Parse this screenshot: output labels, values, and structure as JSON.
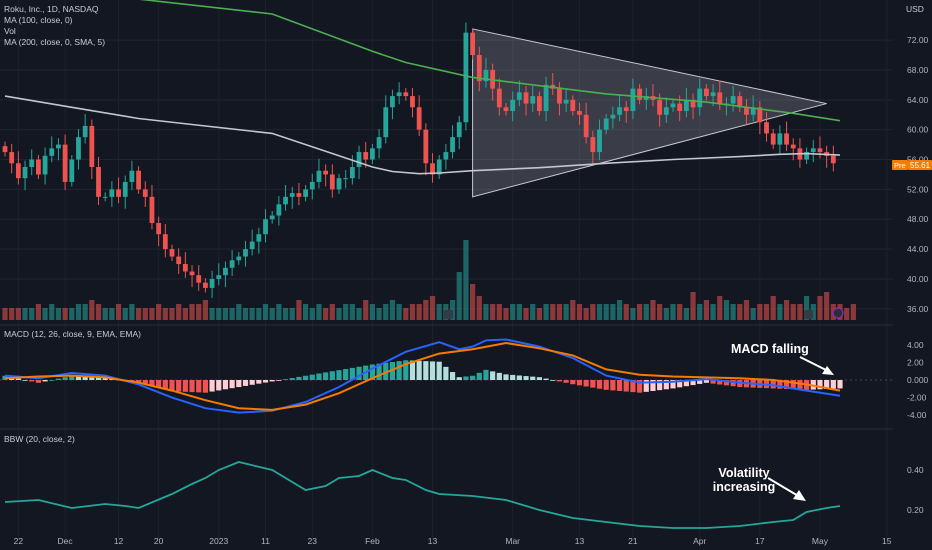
{
  "header": {
    "symbol": "Roku, Inc., 1D, NASDAQ",
    "ma100": "MA (100, close, 0)",
    "vol": "Vol",
    "ma200": "MA (200, close, 0, SMA, 5)",
    "currency": "USD"
  },
  "macd_legend": "MACD (12, 26, close, 9, EMA, EMA)",
  "bbw_legend": "BBW (20, close, 2)",
  "annotations": {
    "macd": "MACD falling",
    "vol_line1": "Volatility",
    "vol_line2": "increasing"
  },
  "price_tag": {
    "pre_label": "Pre",
    "value": "55.61"
  },
  "colors": {
    "up": "#26a69a",
    "down": "#ef5350",
    "ma100": "#4caf50",
    "ma200": "#c3c6ce",
    "macd": "#2962ff",
    "signal": "#f57c00",
    "bbw": "#26a69a"
  },
  "chart_data": [
    {
      "type": "candlestick",
      "panel": "price",
      "x_ticks": [
        "22",
        "Dec",
        "12",
        "20",
        "2023",
        "11",
        "23",
        "Feb",
        "13",
        "Mar",
        "13",
        "21",
        "Apr",
        "17",
        "May",
        "15"
      ],
      "y_ticks": [
        "72.00",
        "68.00",
        "64.00",
        "60.00",
        "56.00",
        "52.00",
        "48.00",
        "44.00",
        "40.00",
        "36.00"
      ],
      "ylim": [
        34.5,
        75.5
      ],
      "closes": [
        57,
        55.5,
        53.5,
        55,
        56,
        54,
        56.5,
        57.5,
        58,
        53,
        56,
        59,
        60.5,
        55,
        51,
        51,
        52,
        51,
        53,
        54.5,
        52,
        51,
        47.5,
        46,
        44,
        43,
        42,
        41,
        40.5,
        39.5,
        38.8,
        40,
        40.5,
        41.5,
        42.5,
        43,
        44,
        45,
        46,
        48,
        48.5,
        50,
        51,
        51.5,
        51,
        52,
        53,
        54.5,
        54,
        52,
        53.5,
        53.5,
        55,
        57,
        56,
        57.5,
        59,
        63,
        64.5,
        65,
        64.5,
        63,
        60,
        55.5,
        54,
        56,
        57,
        59,
        61,
        73,
        70,
        66.5,
        68,
        65.5,
        63,
        62.5,
        64,
        65,
        63.5,
        64.5,
        62.5,
        66,
        65.5,
        63.5,
        64,
        62.5,
        62,
        59,
        57,
        60,
        61.5,
        62,
        63,
        62.5,
        65.5,
        64,
        64.5,
        64,
        62,
        63,
        63.5,
        62.5,
        64,
        63,
        65.5,
        64.5,
        65,
        63.5,
        63.5,
        64.5,
        63,
        62,
        63,
        61,
        59.5,
        58,
        59.5,
        58,
        57.5,
        56,
        57,
        57.5,
        57,
        56.5,
        55.5
      ],
      "triangle": {
        "x_idx": [
          70,
          123,
          70
        ],
        "y": [
          73.5,
          63.5,
          51
        ]
      },
      "annotation": "symmetrical triangle"
    },
    {
      "type": "line",
      "panel": "price",
      "series": [
        {
          "name": "MA (100, close, 0)",
          "role": "ma100",
          "x_idx": [
            0,
            20,
            40,
            55,
            60,
            70,
            90,
            105,
            118,
            125
          ],
          "values": [
            78,
            77.5,
            75.5,
            70.5,
            69,
            67,
            64.8,
            63.7,
            62.2,
            61.2
          ]
        },
        {
          "name": "MA (200, close, 0, SMA, 5)",
          "role": "ma200",
          "x_idx": [
            0,
            10,
            20,
            30,
            40,
            50,
            55,
            58,
            62,
            65,
            70,
            80,
            90,
            100,
            110,
            116,
            120,
            125
          ],
          "values": [
            64.5,
            63,
            61.5,
            60.5,
            59.5,
            56.5,
            55,
            54.4,
            54.1,
            54.2,
            54.5,
            54.9,
            55.5,
            56,
            56.4,
            56.7,
            56.8,
            56.6
          ]
        }
      ]
    },
    {
      "type": "bar",
      "panel": "volume",
      "values": [
        3,
        3,
        3,
        3,
        3,
        4,
        3,
        4,
        3,
        3,
        3,
        4,
        4,
        5,
        4,
        3,
        3,
        4,
        3,
        4,
        3,
        3,
        3,
        4,
        3,
        3,
        4,
        3,
        4,
        4,
        5,
        3,
        3,
        3,
        3,
        4,
        3,
        3,
        3,
        4,
        3,
        4,
        3,
        3,
        5,
        4,
        3,
        4,
        3,
        4,
        3,
        4,
        4,
        3,
        5,
        4,
        3,
        4,
        5,
        4,
        3,
        4,
        4,
        5,
        6,
        4,
        4,
        5,
        12,
        20,
        9,
        6,
        4,
        4,
        4,
        3,
        4,
        4,
        3,
        4,
        3,
        4,
        4,
        4,
        4,
        5,
        4,
        3,
        4,
        4,
        4,
        4,
        5,
        4,
        3,
        4,
        4,
        5,
        4,
        3,
        4,
        4,
        3,
        7,
        4,
        5,
        4,
        6,
        5,
        4,
        4,
        5,
        3,
        4,
        4,
        6,
        4,
        5,
        4,
        4,
        6,
        4,
        6,
        7,
        4,
        4,
        3,
        4
      ],
      "up_flags_from_price": true
    },
    {
      "type": "line",
      "panel": "macd",
      "y_ticks": [
        "4.00",
        "2.00",
        "0.000",
        "-2.00",
        "-4.00"
      ],
      "ylim": [
        -5,
        5
      ],
      "series": [
        {
          "name": "MACD",
          "role": "macd",
          "x_idx": [
            0,
            5,
            10,
            15,
            20,
            25,
            30,
            35,
            40,
            45,
            50,
            55,
            60,
            65,
            68,
            70,
            72,
            75,
            80,
            85,
            90,
            95,
            100,
            105,
            110,
            115,
            120,
            125
          ],
          "values": [
            0.5,
            0.2,
            0.8,
            0.5,
            -0.5,
            -2,
            -3.2,
            -3.7,
            -3.5,
            -2.5,
            -0.8,
            1.3,
            3.2,
            4.3,
            3.5,
            3.8,
            4.5,
            4.6,
            3.8,
            2.5,
            0.5,
            -0.3,
            -0.2,
            0.1,
            -0.3,
            -0.6,
            -1.2,
            -1.8
          ]
        },
        {
          "name": "Signal",
          "role": "signal",
          "x_idx": [
            0,
            5,
            10,
            15,
            20,
            25,
            30,
            35,
            40,
            45,
            50,
            55,
            60,
            65,
            70,
            75,
            80,
            85,
            90,
            95,
            100,
            105,
            110,
            115,
            120,
            125
          ],
          "values": [
            0.2,
            0.4,
            0.5,
            0.3,
            -0.3,
            -1.2,
            -2.3,
            -3.2,
            -3.4,
            -2.8,
            -1.5,
            0.2,
            1.8,
            3,
            3.5,
            4.2,
            3.6,
            2.8,
            1.2,
            0.6,
            0.4,
            0.3,
            0.2,
            0,
            -0.5,
            -1.2
          ]
        }
      ]
    },
    {
      "type": "line",
      "panel": "bbw",
      "y_ticks": [
        "0.40",
        "0.20"
      ],
      "ylim": [
        0.1,
        0.55
      ],
      "series": [
        {
          "name": "BBW",
          "role": "bbw",
          "x_idx": [
            0,
            5,
            10,
            15,
            18,
            20,
            25,
            28,
            30,
            32,
            35,
            40,
            45,
            48,
            50,
            53,
            55,
            58,
            60,
            63,
            65,
            70,
            75,
            80,
            85,
            90,
            95,
            100,
            105,
            110,
            115,
            118,
            120,
            123,
            125
          ],
          "values": [
            0.24,
            0.25,
            0.21,
            0.23,
            0.22,
            0.21,
            0.28,
            0.33,
            0.36,
            0.4,
            0.44,
            0.4,
            0.3,
            0.32,
            0.36,
            0.37,
            0.4,
            0.36,
            0.35,
            0.3,
            0.28,
            0.27,
            0.25,
            0.2,
            0.16,
            0.14,
            0.12,
            0.11,
            0.11,
            0.12,
            0.14,
            0.15,
            0.19,
            0.21,
            0.22
          ]
        }
      ]
    }
  ]
}
